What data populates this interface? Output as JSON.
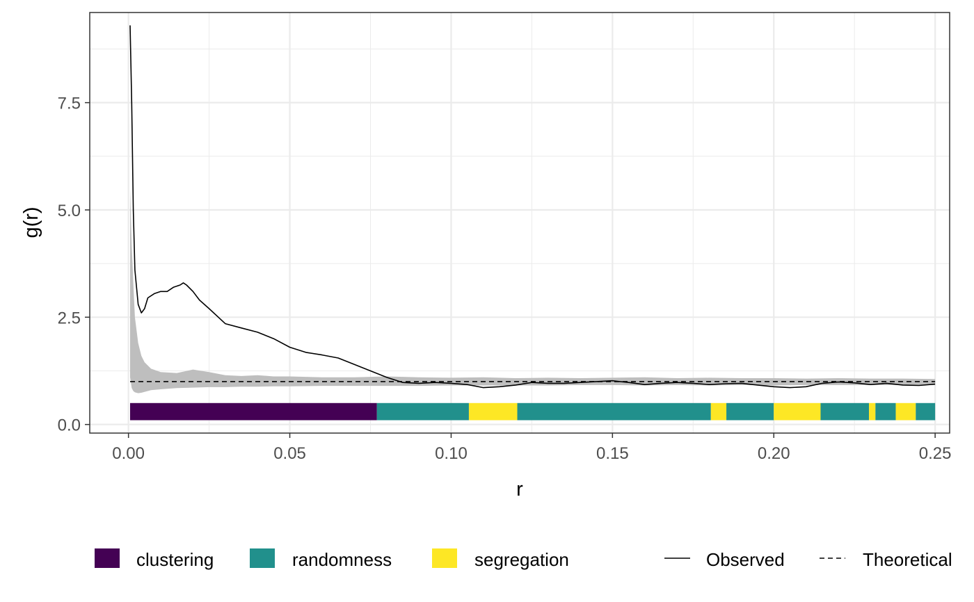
{
  "chart_data": {
    "type": "line",
    "title": "",
    "xlabel": "r",
    "ylabel": "g(r)",
    "xlim": [
      -0.012,
      0.2545
    ],
    "ylim": [
      -0.2,
      9.6
    ],
    "x_ticks": [
      0.0,
      0.05,
      0.1,
      0.15,
      0.2,
      0.25
    ],
    "x_tick_labels": [
      "0.00",
      "0.05",
      "0.10",
      "0.15",
      "0.20",
      "0.25"
    ],
    "y_ticks": [
      0.0,
      2.5,
      5.0,
      7.5
    ],
    "y_tick_labels": [
      "0.0",
      "2.5",
      "5.0",
      "7.5"
    ],
    "grid": true,
    "legend_position": "bottom",
    "series": [
      {
        "name": "Observed",
        "style": "solid",
        "color": "#000000",
        "x": [
          0.0005,
          0.001,
          0.0015,
          0.002,
          0.003,
          0.004,
          0.005,
          0.006,
          0.008,
          0.01,
          0.012,
          0.014,
          0.016,
          0.017,
          0.018,
          0.02,
          0.022,
          0.025,
          0.03,
          0.035,
          0.04,
          0.045,
          0.05,
          0.055,
          0.06,
          0.065,
          0.07,
          0.075,
          0.08,
          0.085,
          0.09,
          0.095,
          0.1,
          0.105,
          0.11,
          0.115,
          0.12,
          0.125,
          0.13,
          0.135,
          0.14,
          0.145,
          0.15,
          0.155,
          0.16,
          0.165,
          0.17,
          0.175,
          0.18,
          0.185,
          0.19,
          0.195,
          0.2,
          0.205,
          0.21,
          0.215,
          0.22,
          0.225,
          0.23,
          0.235,
          0.24,
          0.245,
          0.25
        ],
        "y": [
          9.3,
          7.5,
          5.0,
          3.6,
          2.8,
          2.6,
          2.7,
          2.95,
          3.05,
          3.1,
          3.1,
          3.2,
          3.25,
          3.3,
          3.25,
          3.1,
          2.9,
          2.7,
          2.35,
          2.25,
          2.15,
          2.0,
          1.8,
          1.68,
          1.62,
          1.55,
          1.4,
          1.25,
          1.1,
          0.98,
          0.96,
          0.98,
          0.96,
          0.93,
          0.86,
          0.88,
          0.92,
          0.98,
          0.96,
          0.96,
          0.98,
          1.0,
          1.02,
          0.98,
          0.93,
          0.96,
          0.98,
          0.96,
          0.93,
          0.95,
          0.96,
          0.92,
          0.88,
          0.86,
          0.88,
          0.96,
          0.99,
          0.97,
          0.93,
          0.96,
          0.92,
          0.91,
          0.94
        ]
      },
      {
        "name": "Theoretical",
        "style": "dashed",
        "color": "#000000",
        "x": [
          0.0005,
          0.25
        ],
        "y": [
          1.0,
          1.0
        ]
      }
    ],
    "envelope": {
      "color": "#bebebe",
      "x": [
        0.0005,
        0.001,
        0.0015,
        0.002,
        0.003,
        0.004,
        0.005,
        0.007,
        0.01,
        0.015,
        0.02,
        0.025,
        0.03,
        0.035,
        0.04,
        0.045,
        0.05,
        0.06,
        0.07,
        0.08,
        0.09,
        0.1,
        0.11,
        0.12,
        0.13,
        0.14,
        0.15,
        0.16,
        0.17,
        0.18,
        0.19,
        0.2,
        0.21,
        0.22,
        0.23,
        0.24,
        0.25
      ],
      "lower": [
        1.1,
        0.85,
        0.78,
        0.75,
        0.73,
        0.74,
        0.76,
        0.8,
        0.82,
        0.85,
        0.86,
        0.87,
        0.87,
        0.88,
        0.88,
        0.89,
        0.89,
        0.9,
        0.9,
        0.9,
        0.9,
        0.91,
        0.91,
        0.91,
        0.91,
        0.92,
        0.92,
        0.91,
        0.92,
        0.91,
        0.92,
        0.91,
        0.92,
        0.92,
        0.92,
        0.92,
        0.92
      ],
      "upper": [
        5.5,
        4.2,
        3.3,
        2.5,
        1.9,
        1.6,
        1.45,
        1.3,
        1.22,
        1.2,
        1.28,
        1.22,
        1.15,
        1.13,
        1.15,
        1.12,
        1.12,
        1.1,
        1.1,
        1.12,
        1.1,
        1.09,
        1.1,
        1.08,
        1.09,
        1.08,
        1.09,
        1.1,
        1.08,
        1.09,
        1.08,
        1.08,
        1.07,
        1.08,
        1.07,
        1.07,
        1.06
      ]
    },
    "classification_bar": {
      "y_bottom": 0.1,
      "y_top": 0.5,
      "segments": [
        {
          "category": "clustering",
          "start": 0.0005,
          "end": 0.077
        },
        {
          "category": "randomness",
          "start": 0.077,
          "end": 0.1055
        },
        {
          "category": "segregation",
          "start": 0.1055,
          "end": 0.1205
        },
        {
          "category": "randomness",
          "start": 0.1205,
          "end": 0.1805
        },
        {
          "category": "segregation",
          "start": 0.1805,
          "end": 0.1853
        },
        {
          "category": "randomness",
          "start": 0.1853,
          "end": 0.2
        },
        {
          "category": "segregation",
          "start": 0.2,
          "end": 0.2145
        },
        {
          "category": "randomness",
          "start": 0.2145,
          "end": 0.2295
        },
        {
          "category": "segregation",
          "start": 0.2295,
          "end": 0.2315
        },
        {
          "category": "randomness",
          "start": 0.2315,
          "end": 0.2378
        },
        {
          "category": "segregation",
          "start": 0.2378,
          "end": 0.244
        },
        {
          "category": "randomness",
          "start": 0.244,
          "end": 0.25
        }
      ]
    },
    "categories": [
      {
        "name": "clustering",
        "color": "#440154"
      },
      {
        "name": "randomness",
        "color": "#21908C"
      },
      {
        "name": "segregation",
        "color": "#FDE725"
      }
    ]
  }
}
